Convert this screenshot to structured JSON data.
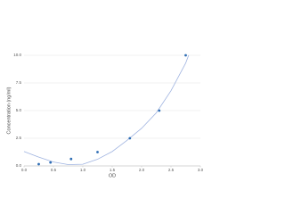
{
  "chart_data": {
    "type": "scatter",
    "x_label": "OD",
    "y_label": "Concentration (ng/ml)",
    "x": [
      0.25,
      0.45,
      0.8,
      1.25,
      1.8,
      2.3,
      2.75
    ],
    "values": [
      0.16,
      0.31,
      0.63,
      1.25,
      2.5,
      5.0,
      10.0
    ],
    "color": "#2e6db4",
    "curve": {
      "x": [
        0,
        0.25,
        0.5,
        0.75,
        1.0,
        1.25,
        1.5,
        1.75,
        2.0,
        2.25,
        2.5,
        2.75,
        2.8
      ],
      "values": [
        1.3,
        0.8,
        0.35,
        0.12,
        0.15,
        0.6,
        1.3,
        2.3,
        3.4,
        4.8,
        6.8,
        9.3,
        10.0
      ],
      "color": "#9fb3e0"
    },
    "xlim": [
      0,
      3
    ],
    "ylim": [
      0,
      10
    ],
    "xticks": [
      {
        "value": 0,
        "label": "0.0"
      },
      0.5,
      {
        "value": 1,
        "label": "1.0"
      },
      1.5,
      {
        "value": 2,
        "label": "2.0"
      },
      2.5,
      {
        "value": 3,
        "label": "3.0"
      }
    ],
    "yticks": [
      {
        "value": 0,
        "label": "0.0"
      },
      2.5,
      {
        "value": 5,
        "label": "5.0"
      },
      7.5,
      {
        "value": 10,
        "label": "10.0"
      }
    ],
    "grid": true
  }
}
